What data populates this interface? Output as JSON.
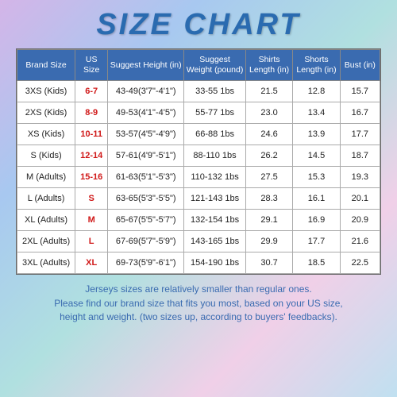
{
  "title": "SIZE CHART",
  "columns": [
    "Brand Size",
    "US Size",
    "Suggest Height (in)",
    "Suggest Weight (pound)",
    "Shirts Length (in)",
    "Shorts Length (in)",
    "Bust (in)"
  ],
  "col_widths_pct": [
    16,
    9,
    21,
    17,
    13,
    13,
    11
  ],
  "rows": [
    {
      "brand": "3XS (Kids)",
      "us": "6-7",
      "h": "43-49(3'7\"-4'1\")",
      "w": "33-55 1bs",
      "shirt": "21.5",
      "short": "12.8",
      "bust": "15.7"
    },
    {
      "brand": "2XS (Kids)",
      "us": "8-9",
      "h": "49-53(4'1\"-4'5\")",
      "w": "55-77 1bs",
      "shirt": "23.0",
      "short": "13.4",
      "bust": "16.7"
    },
    {
      "brand": "XS (Kids)",
      "us": "10-11",
      "h": "53-57(4'5\"-4'9\")",
      "w": "66-88 1bs",
      "shirt": "24.6",
      "short": "13.9",
      "bust": "17.7"
    },
    {
      "brand": "S (Kids)",
      "us": "12-14",
      "h": "57-61(4'9\"-5'1\")",
      "w": "88-110 1bs",
      "shirt": "26.2",
      "short": "14.5",
      "bust": "18.7"
    },
    {
      "brand": "M (Adults)",
      "us": "15-16",
      "h": "61-63(5'1\"-5'3\")",
      "w": "110-132 1bs",
      "shirt": "27.5",
      "short": "15.3",
      "bust": "19.3"
    },
    {
      "brand": "L (Adults)",
      "us": "S",
      "h": "63-65(5'3\"-5'5\")",
      "w": "121-143 1bs",
      "shirt": "28.3",
      "short": "16.1",
      "bust": "20.1"
    },
    {
      "brand": "XL (Adults)",
      "us": "M",
      "h": "65-67(5'5\"-5'7\")",
      "w": "132-154 1bs",
      "shirt": "29.1",
      "short": "16.9",
      "bust": "20.9"
    },
    {
      "brand": "2XL (Adults)",
      "us": "L",
      "h": "67-69(5'7\"-5'9\")",
      "w": "143-165 1bs",
      "shirt": "29.9",
      "short": "17.7",
      "bust": "21.6"
    },
    {
      "brand": "3XL (Adults)",
      "us": "XL",
      "h": "69-73(5'9\"-6'1\")",
      "w": "154-190 1bs",
      "shirt": "30.7",
      "short": "18.5",
      "bust": "22.5"
    }
  ],
  "footer": [
    "Jerseys sizes are relatively smaller than regular ones.",
    "Please find our brand size that fits you most, based on your US size,",
    "height and weight. (two sizes up, according to buyers' feedbacks)."
  ],
  "colors": {
    "title": "#2a6bb0",
    "header_bg": "#3a6bb0",
    "header_text": "#ffffff",
    "us_text": "#d01818",
    "footer_text": "#3a6bb0",
    "border": "#888888"
  }
}
